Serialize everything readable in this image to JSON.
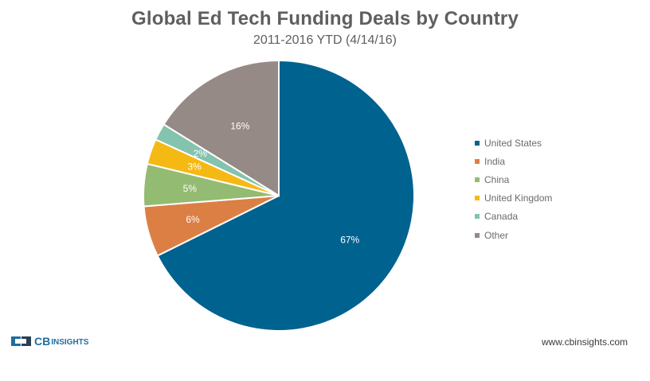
{
  "chart_data": {
    "type": "pie",
    "title": "Global Ed Tech Funding Deals by Country",
    "subtitle": "2011-2016 YTD (4/14/16)",
    "categories": [
      "United States",
      "India",
      "China",
      "United Kingdom",
      "Canada",
      "Other"
    ],
    "values": [
      67,
      6,
      5,
      3,
      2,
      16
    ],
    "labels": [
      "67%",
      "6%",
      "5%",
      "3%",
      "2%",
      "16%"
    ],
    "colors": [
      "#00628f",
      "#dc7f45",
      "#94bb72",
      "#f5b914",
      "#84c3ad",
      "#968a86"
    ],
    "legend_position": "right"
  },
  "footer": {
    "logo_cb": "CB",
    "logo_insights": "INSIGHTS",
    "website": "www.cbinsights.com"
  }
}
